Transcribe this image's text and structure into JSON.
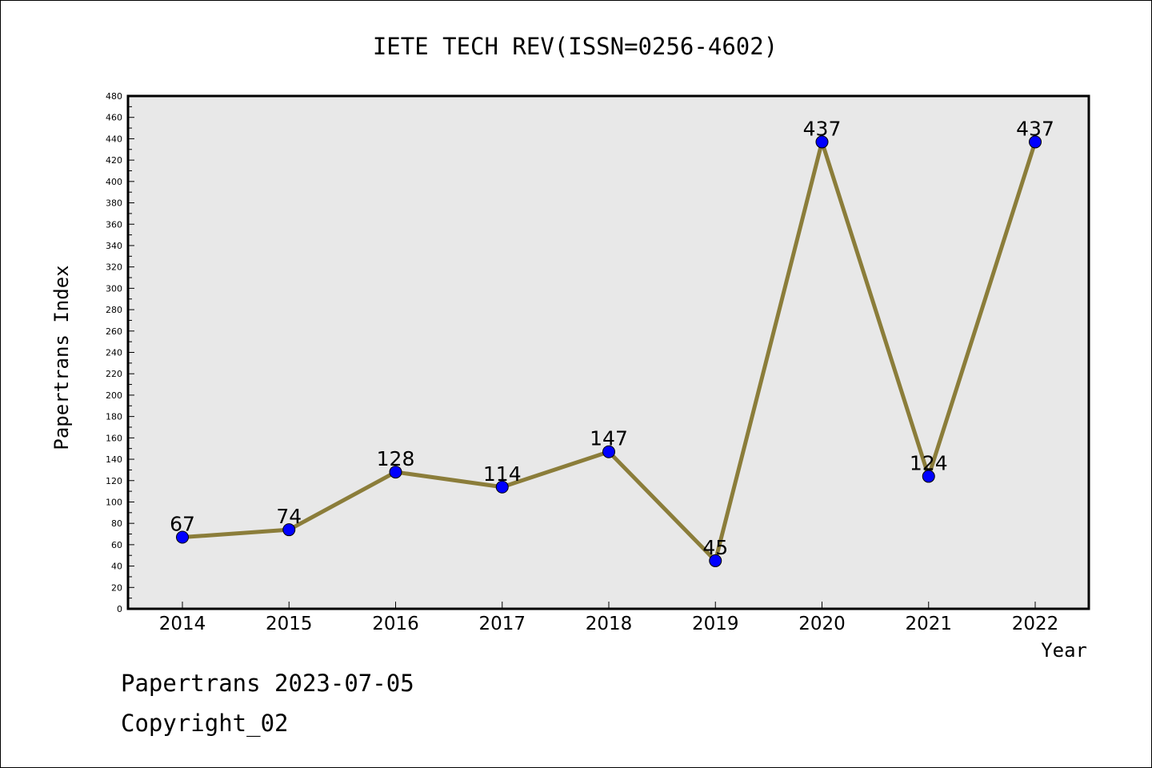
{
  "chart_data": {
    "type": "line",
    "title": "IETE TECH REV(ISSN=0256-4602)",
    "xlabel": "Year",
    "ylabel": "Papertrans Index",
    "categories": [
      "2014",
      "2015",
      "2016",
      "2017",
      "2018",
      "2019",
      "2020",
      "2021",
      "2022"
    ],
    "values": [
      67,
      74,
      128,
      114,
      147,
      45,
      437,
      124,
      437
    ],
    "data_labels": [
      "67",
      "74",
      "128",
      "114",
      "147",
      "45",
      "437",
      "124",
      "437"
    ],
    "ylim": [
      0,
      480
    ],
    "yticks": [
      0,
      20,
      40,
      60,
      80,
      100,
      120,
      140,
      160,
      180,
      200,
      220,
      240,
      260,
      280,
      300,
      320,
      340,
      360,
      380,
      400,
      420,
      440,
      460,
      480
    ],
    "grid": false,
    "line_color": "#8b7d3a",
    "marker_color": "#0000ff",
    "plot_background": "#e8e8e8"
  },
  "footer": {
    "line1": "Papertrans 2023-07-05",
    "line2": "Copyright_02"
  }
}
